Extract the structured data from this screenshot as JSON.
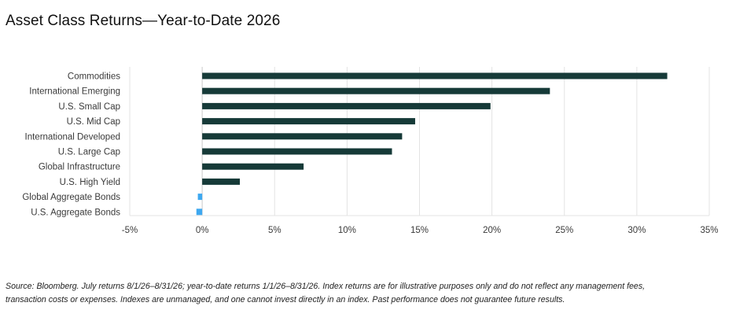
{
  "title": "Asset Class Returns—Year-to-Date 2026",
  "source_lines": [
    "Source: Bloomberg. July returns 8/1/26–8/31/26; year-to-date returns 1/1/26–8/31/26. Index returns are for illustrative purposes only and do not reflect any management fees,",
    "transaction costs or expenses. Indexes are unmanaged, and one cannot invest directly in an index. Past performance does not guarantee future results."
  ],
  "colors": {
    "positive": "#163a38",
    "negative": "#3ea8f0",
    "grid": "#e3e3e3",
    "axis": "#c9c9c9"
  },
  "chart_data": {
    "type": "bar",
    "orientation": "horizontal",
    "categories": [
      "Commodities",
      "International Emerging",
      "U.S. Small Cap",
      "U.S. Mid Cap",
      "International Developed",
      "U.S. Large Cap",
      "Global Infrastructure",
      "U.S. High Yield",
      "Global Aggregate Bonds",
      "U.S. Aggregate Bonds"
    ],
    "values": [
      32.1,
      24.0,
      19.9,
      14.7,
      13.8,
      13.1,
      7.0,
      2.6,
      -0.3,
      -0.4
    ],
    "xlim": [
      -5,
      35
    ],
    "xticks": [
      -5,
      0,
      5,
      10,
      15,
      20,
      25,
      30,
      35
    ],
    "xtick_labels": [
      "-5%",
      "0%",
      "5%",
      "10%",
      "15%",
      "20%",
      "25%",
      "30%",
      "35%"
    ],
    "grid": true,
    "legend": "none"
  }
}
